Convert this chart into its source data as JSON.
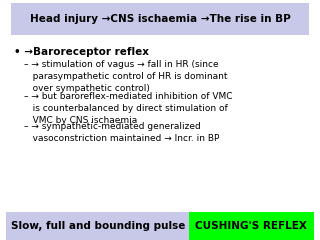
{
  "title": "Head injury →CNS ischaemia →The rise in BP",
  "title_bg": "#c8c8e8",
  "body_bg": "#ffffff",
  "main_bullet": "• →Baroreceptor reflex",
  "sub1": "– → stimulation of vagus → fall in HR (since\n   parasympathetic control of HR is dominant\n   over sympathetic control)",
  "sub2": "– → but baroreflex-mediated inhibition of VMC\n   is counterbalanced by direct stimulation of\n   VMC by CNS ischaemia",
  "sub3": "– → sympathetic-mediated generalized\n   vasoconstriction maintained → Incr. in BP",
  "bottom_left_text": "Slow, full and bounding pulse",
  "bottom_left_bg": "#c8c8e8",
  "bottom_right_text": "CUSHING'S REFLEX",
  "bottom_right_bg": "#00ff00",
  "bottom_right_text_color": "#000000",
  "fig_width": 3.2,
  "fig_height": 2.4,
  "dpi": 100
}
